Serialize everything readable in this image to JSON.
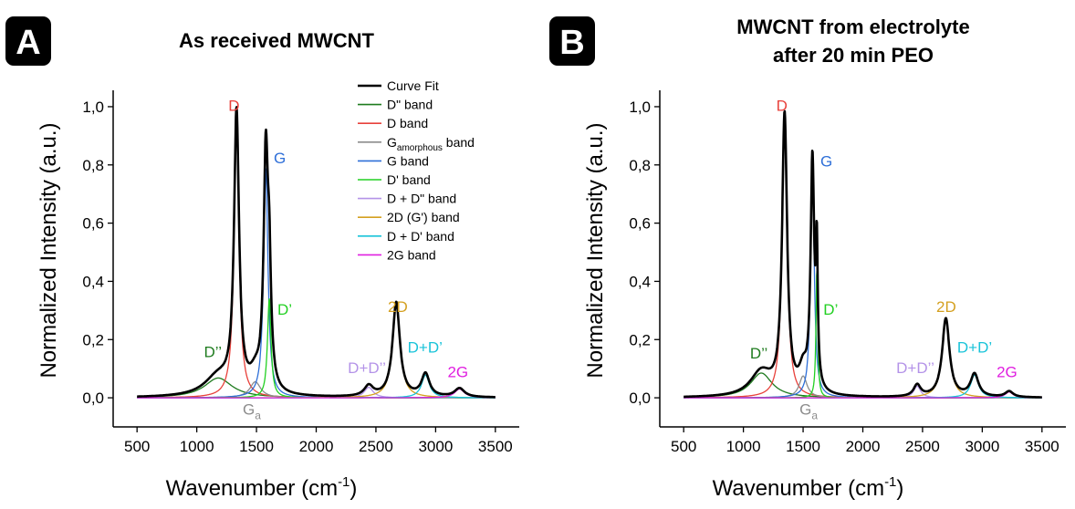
{
  "colors": {
    "curve_fit": "#000000",
    "d_double_prime": "#1e7b1e",
    "d_band": "#e8413b",
    "g_amorphous": "#8c8c8c",
    "g_band": "#2e6fd8",
    "d_prime": "#22d022",
    "d_plus_d_double_prime": "#b493e8",
    "two_d": "#d4a020",
    "d_plus_d_prime": "#19c3d9",
    "two_g": "#e020e0"
  },
  "legend": {
    "placement": "top-right of panel A",
    "entries": [
      {
        "key": "curve_fit",
        "label": "Curve Fit"
      },
      {
        "key": "d_double_prime",
        "label": "D\" band"
      },
      {
        "key": "d_band",
        "label": "D band"
      },
      {
        "key": "g_amorphous",
        "label": "G",
        "sub": "amorphous",
        "suffix": " band"
      },
      {
        "key": "g_band",
        "label": "G band"
      },
      {
        "key": "d_prime",
        "label": "D' band"
      },
      {
        "key": "d_plus_d_double_prime",
        "label": "D + D\" band"
      },
      {
        "key": "two_d",
        "label": "2D (G') band"
      },
      {
        "key": "d_plus_d_prime",
        "label": "D + D' band"
      },
      {
        "key": "two_g",
        "label": "2G band"
      }
    ]
  },
  "chart_data": [
    {
      "panel": "A",
      "type": "line",
      "title": "As received MWCNT",
      "xlabel": "Wavenumber (cm",
      "xlabel_sup": "-1",
      "xlabel_end": ")",
      "ylabel": "Normalized Intensity (a.u.)",
      "xlim": [
        300,
        3700
      ],
      "ylim": [
        -0.1,
        1.05
      ],
      "xticks": [
        500,
        1000,
        1500,
        2000,
        2500,
        3000,
        3500
      ],
      "yticks": [
        0.0,
        0.2,
        0.4,
        0.6,
        0.8,
        1.0
      ],
      "ytick_labels": [
        "0,0",
        "0,2",
        "0,4",
        "0,6",
        "0,8",
        "1,0"
      ],
      "grid": false,
      "x_range": [
        500,
        3500
      ],
      "components": [
        {
          "key": "d_double_prime",
          "center": 1180,
          "height": 0.068,
          "hwhm": 140
        },
        {
          "key": "d_band",
          "center": 1333,
          "height": 0.955,
          "hwhm": 25
        },
        {
          "key": "g_amorphous",
          "center": 1490,
          "height": 0.055,
          "hwhm": 55
        },
        {
          "key": "g_band",
          "center": 1578,
          "height": 0.79,
          "hwhm": 22
        },
        {
          "key": "d_prime",
          "center": 1607,
          "height": 0.34,
          "hwhm": 18
        },
        {
          "key": "d_plus_d_double_prime",
          "center": 2440,
          "height": 0.036,
          "hwhm": 45
        },
        {
          "key": "two_d",
          "center": 2670,
          "height": 0.325,
          "hwhm": 37
        },
        {
          "key": "d_plus_d_prime",
          "center": 2915,
          "height": 0.078,
          "hwhm": 40
        },
        {
          "key": "two_g",
          "center": 3200,
          "height": 0.03,
          "hwhm": 50
        }
      ],
      "peak_labels": [
        {
          "text": "D",
          "key": "d_band",
          "x": 1265,
          "y": 0.985
        },
        {
          "text": "G",
          "key": "g_band",
          "x": 1645,
          "y": 0.805
        },
        {
          "text": "D’",
          "key": "d_prime",
          "x": 1675,
          "y": 0.285
        },
        {
          "text": "2D",
          "key": "two_d",
          "x": 2600,
          "y": 0.295
        },
        {
          "text": "D’’",
          "key": "d_double_prime",
          "x": 1060,
          "y": 0.14
        },
        {
          "text": "D+D’’",
          "key": "d_plus_d_double_prime",
          "x": 2265,
          "y": 0.085
        },
        {
          "text": "D+D’",
          "key": "d_plus_d_prime",
          "x": 2765,
          "y": 0.155
        },
        {
          "text": "2G",
          "key": "two_g",
          "x": 3100,
          "y": 0.07
        },
        {
          "text": "G",
          "sub": "a",
          "key": "g_amorphous",
          "x": 1385,
          "y": -0.057
        }
      ]
    },
    {
      "panel": "B",
      "type": "line",
      "title": "MWCNT from electrolyte",
      "title_line2": "after 20 min PEO",
      "xlabel": "Wavenumber (cm",
      "xlabel_sup": "-1",
      "xlabel_end": ")",
      "ylabel": "Normalized Intensity (a.u.)",
      "xlim": [
        300,
        3700
      ],
      "ylim": [
        -0.1,
        1.05
      ],
      "xticks": [
        500,
        1000,
        1500,
        2000,
        2500,
        3000,
        3500
      ],
      "yticks": [
        0.0,
        0.2,
        0.4,
        0.6,
        0.8,
        1.0
      ],
      "ytick_labels": [
        "0,0",
        "0,2",
        "0,4",
        "0,6",
        "0,8",
        "1,0"
      ],
      "grid": false,
      "x_range": [
        500,
        3500
      ],
      "components": [
        {
          "key": "d_double_prime",
          "center": 1150,
          "height": 0.085,
          "hwhm": 110
        },
        {
          "key": "d_band",
          "center": 1345,
          "height": 0.955,
          "hwhm": 25
        },
        {
          "key": "g_amorphous",
          "center": 1500,
          "height": 0.075,
          "hwhm": 40
        },
        {
          "key": "g_band",
          "center": 1578,
          "height": 0.795,
          "hwhm": 18
        },
        {
          "key": "d_prime",
          "center": 1615,
          "height": 0.44,
          "hwhm": 9
        },
        {
          "key": "d_plus_d_double_prime",
          "center": 2455,
          "height": 0.04,
          "hwhm": 35
        },
        {
          "key": "two_d",
          "center": 2695,
          "height": 0.27,
          "hwhm": 37
        },
        {
          "key": "d_plus_d_prime",
          "center": 2935,
          "height": 0.078,
          "hwhm": 40
        },
        {
          "key": "two_g",
          "center": 3225,
          "height": 0.02,
          "hwhm": 40
        }
      ],
      "peak_labels": [
        {
          "text": "D",
          "key": "d_band",
          "x": 1275,
          "y": 0.985
        },
        {
          "text": "G",
          "key": "g_band",
          "x": 1645,
          "y": 0.795
        },
        {
          "text": "D’",
          "key": "d_prime",
          "x": 1670,
          "y": 0.285
        },
        {
          "text": "2D",
          "key": "two_d",
          "x": 2615,
          "y": 0.295
        },
        {
          "text": "D’’",
          "key": "d_double_prime",
          "x": 1055,
          "y": 0.135
        },
        {
          "text": "D+D’’",
          "key": "d_plus_d_double_prime",
          "x": 2280,
          "y": 0.085
        },
        {
          "text": "D+D’",
          "key": "d_plus_d_prime",
          "x": 2790,
          "y": 0.155
        },
        {
          "text": "2G",
          "key": "two_g",
          "x": 3120,
          "y": 0.07
        },
        {
          "text": "G",
          "sub": "a",
          "key": "g_amorphous",
          "x": 1470,
          "y": -0.057
        }
      ]
    }
  ]
}
